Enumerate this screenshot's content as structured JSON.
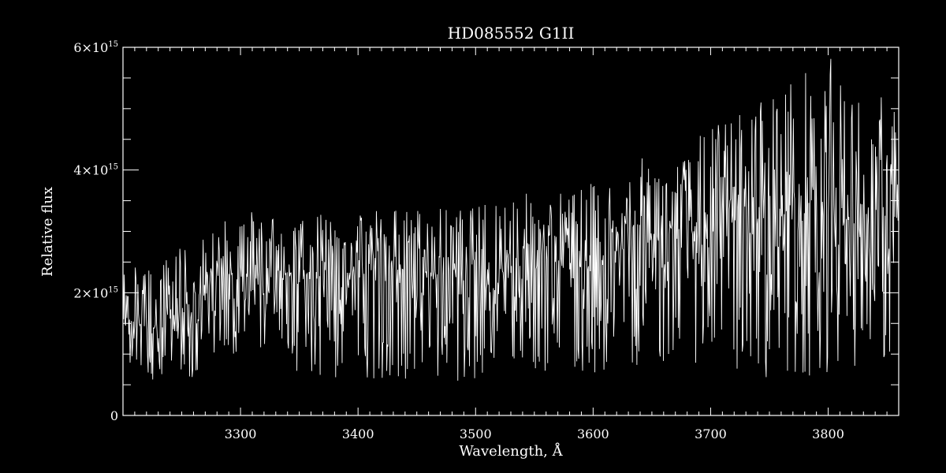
{
  "chart_data": {
    "type": "line",
    "title": "HD085552   G1II",
    "xlabel": "Wavelength, Å",
    "ylabel": "Relative flux",
    "xlim": [
      3200,
      3860
    ],
    "ylim": [
      0,
      6000000000000000.0
    ],
    "x_ticks": [
      3300,
      3400,
      3500,
      3600,
      3700,
      3800
    ],
    "x_tick_labels": [
      "3300",
      "3400",
      "3500",
      "3600",
      "3700",
      "3800"
    ],
    "y_ticks": [
      {
        "value": 0,
        "mantissa": "0",
        "exponent": ""
      },
      {
        "value": 2000000000000000.0,
        "mantissa": "2×10",
        "exponent": "15"
      },
      {
        "value": 4000000000000000.0,
        "mantissa": "4×10",
        "exponent": "15"
      },
      {
        "value": 6000000000000000.0,
        "mantissa": "6×10",
        "exponent": "15"
      }
    ],
    "x_minor_step": 10,
    "y_minor_step": 500000000000000.0,
    "grid": false,
    "colors": {
      "background": "#000000",
      "foreground": "#ffffff"
    },
    "spectrum_envelope": {
      "wavelength_A": [
        3200,
        3225,
        3250,
        3275,
        3300,
        3325,
        3350,
        3375,
        3400,
        3425,
        3450,
        3475,
        3500,
        3525,
        3550,
        3575,
        3600,
        3625,
        3650,
        3675,
        3700,
        3725,
        3750,
        3775,
        3800,
        3825,
        3860
      ],
      "mean_flux": [
        1600000000000000.0,
        1400000000000000.0,
        1700000000000000.0,
        2200000000000000.0,
        2300000000000000.0,
        2300000000000000.0,
        2200000000000000.0,
        2300000000000000.0,
        2300000000000000.0,
        2400000000000000.0,
        2300000000000000.0,
        2400000000000000.0,
        2300000000000000.0,
        2500000000000000.0,
        2500000000000000.0,
        2600000000000000.0,
        2500000000000000.0,
        2700000000000000.0,
        2900000000000000.0,
        3000000000000000.0,
        3000000000000000.0,
        3200000000000000.0,
        3200000000000000.0,
        3400000000000000.0,
        3500000000000000.0,
        3100000000000000.0,
        3200000000000000.0
      ],
      "max_flux": [
        2500000000000000.0,
        2400000000000000.0,
        2800000000000000.0,
        3000000000000000.0,
        3400000000000000.0,
        3200000000000000.0,
        3200000000000000.0,
        3300000000000000.0,
        3500000000000000.0,
        3400000000000000.0,
        3400000000000000.0,
        3400000000000000.0,
        3400000000000000.0,
        3800000000000000.0,
        3600000000000000.0,
        3700000000000000.0,
        3800000000000000.0,
        4000000000000000.0,
        4300000000000000.0,
        4200000000000000.0,
        4800000000000000.0,
        5000000000000000.0,
        5400000000000000.0,
        5600000000000000.0,
        5900000000000000.0,
        5300000000000000.0,
        5200000000000000.0
      ],
      "min_flux": [
        700000000000000.0,
        500000000000000.0,
        400000000000000.0,
        1000000000000000.0,
        1000000000000000.0,
        900000000000000.0,
        400000000000000.0,
        500000000000000.0,
        600000000000000.0,
        600000000000000.0,
        600000000000000.0,
        500000000000000.0,
        600000000000000.0,
        700000000000000.0,
        700000000000000.0,
        500000000000000.0,
        600000000000000.0,
        800000000000000.0,
        800000000000000.0,
        800000000000000.0,
        900000000000000.0,
        600000000000000.0,
        600000000000000.0,
        600000000000000.0,
        700000000000000.0,
        800000000000000.0,
        900000000000000.0
      ]
    }
  }
}
